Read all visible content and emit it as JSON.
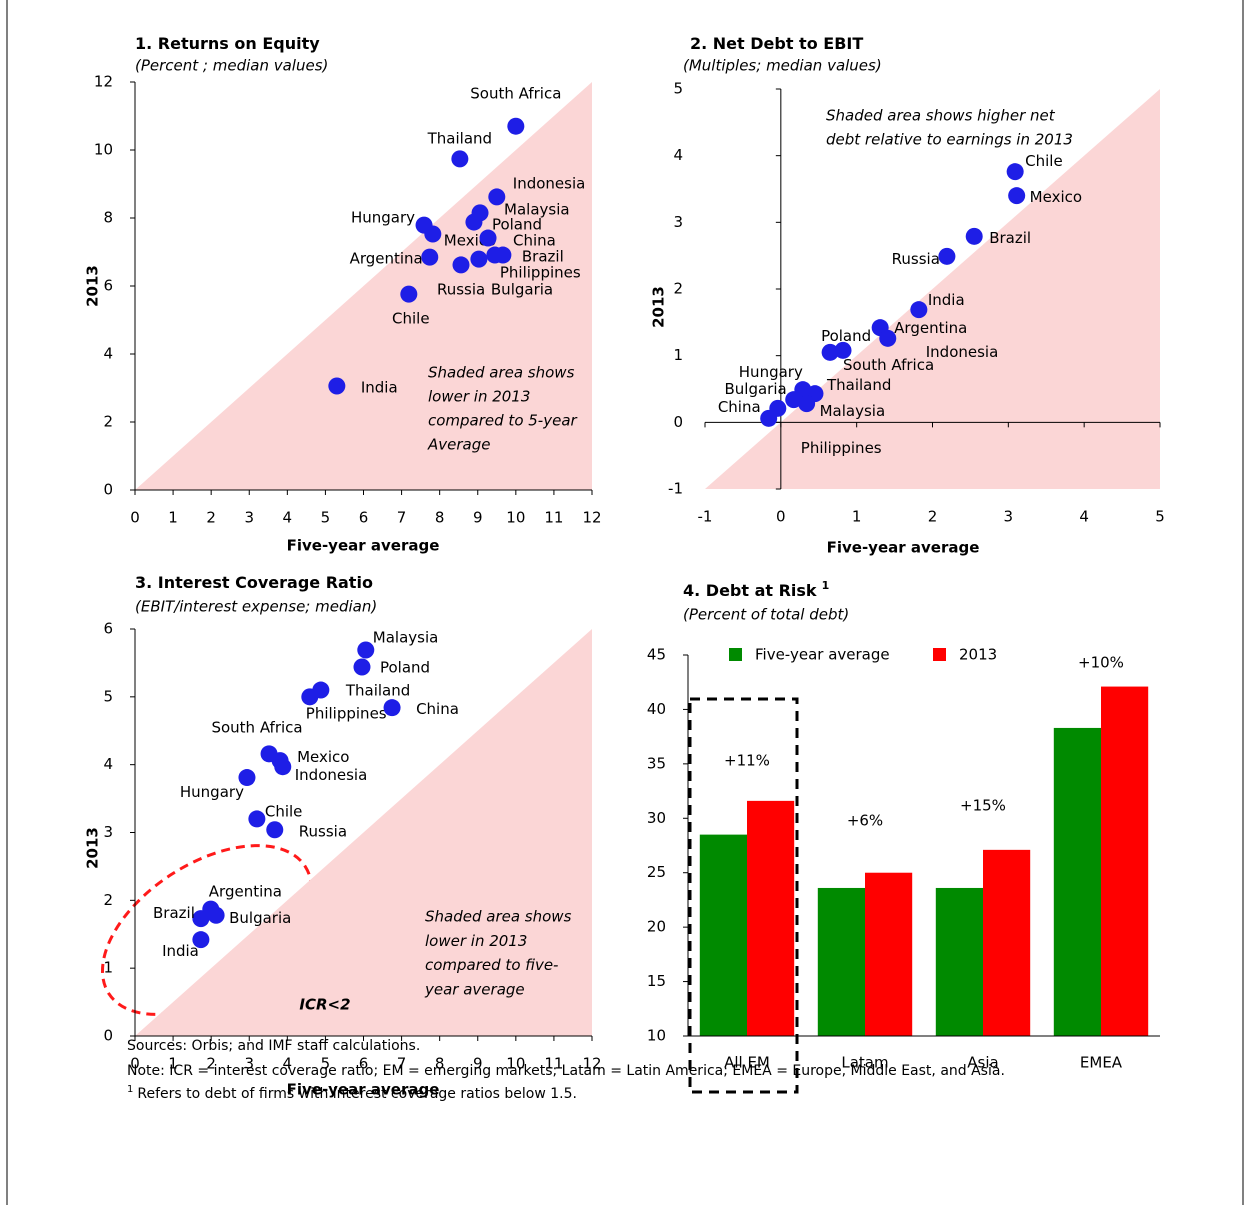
{
  "chart_data": [
    {
      "type": "scatter",
      "title": "1. Returns on Equity",
      "subtitle": "(Percent ; median values)",
      "x_label": "Five-year average",
      "y_label": "2013",
      "labels": [
        "South Africa",
        "Thailand",
        "Indonesia",
        "Malaysia",
        "Poland",
        "Hungary",
        "Mexico",
        "China",
        "Brazil",
        "Philippines",
        "Bulgaria",
        "Russia",
        "Argentina",
        "Chile",
        "India"
      ],
      "x": [
        10.0,
        8.53,
        9.5,
        9.06,
        8.9,
        7.59,
        7.82,
        9.27,
        9.66,
        9.45,
        9.03,
        8.56,
        7.74,
        7.19,
        5.3
      ],
      "values": [
        10.7,
        9.74,
        8.62,
        8.15,
        7.88,
        7.79,
        7.53,
        7.41,
        6.91,
        6.91,
        6.79,
        6.62,
        6.85,
        5.76,
        3.06
      ],
      "color": "#1e1ee6",
      "shade_color": "#fbd6d6",
      "annotation_color": "#ff1a1a",
      "annotation": [
        "Shaded area shows",
        "lower in 2013",
        "compared to 5-year",
        "Average"
      ],
      "xlim": [
        0,
        12
      ],
      "ylim": [
        0,
        12
      ],
      "xticks": [
        0,
        1,
        2,
        3,
        4,
        5,
        6,
        7,
        8,
        9,
        10,
        11,
        12
      ],
      "yticks": [
        0,
        2,
        4,
        6,
        8,
        10,
        12
      ]
    },
    {
      "type": "scatter",
      "title": "2. Net Debt to EBIT",
      "subtitle": "(Multiples; median values)",
      "x_label": "Five-year average",
      "y_label": "2013",
      "labels": [
        "Chile",
        "Mexico",
        "Brazil",
        "Russia",
        "India",
        "Argentina",
        "Indonesia",
        "Poland",
        "South Africa",
        "Hungary",
        "Thailand",
        "Bulgaria",
        "Malaysia",
        "China",
        "Philippines"
      ],
      "x": [
        3.09,
        3.11,
        2.55,
        2.19,
        1.82,
        1.31,
        1.41,
        0.65,
        0.82,
        0.29,
        0.45,
        0.17,
        0.34,
        -0.16,
        -0.04
      ],
      "values": [
        3.76,
        3.4,
        2.79,
        2.49,
        1.69,
        1.42,
        1.26,
        1.05,
        1.08,
        0.49,
        0.43,
        0.34,
        0.28,
        0.06,
        0.21
      ],
      "color": "#1e1ee6",
      "shade_color": "#fbd6d6",
      "annotation_color": "#ff1a1a",
      "annotation": [
        "Shaded area shows higher net",
        "debt relative to earnings in 2013"
      ],
      "xlim": [
        -1,
        5
      ],
      "ylim": [
        -1,
        5
      ],
      "xticks": [
        -1,
        0,
        1,
        2,
        3,
        4,
        5
      ],
      "yticks": [
        -1,
        0,
        1,
        2,
        3,
        4,
        5
      ]
    },
    {
      "type": "scatter",
      "title": "3. Interest Coverage Ratio",
      "subtitle": "(EBIT/interest expense; median)",
      "x_label": "Five-year average",
      "y_label": "2013",
      "labels": [
        "Malaysia",
        "Poland",
        "Thailand",
        "Philippines",
        "China",
        "South Africa",
        "Mexico",
        "Indonesia",
        "Hungary",
        "Chile",
        "Russia",
        "Argentina",
        "Bulgaria",
        "Brazil",
        "India"
      ],
      "x": [
        6.06,
        5.96,
        4.88,
        4.59,
        6.75,
        3.52,
        3.81,
        3.88,
        2.94,
        3.2,
        3.67,
        1.99,
        2.13,
        1.73,
        1.73
      ],
      "values": [
        5.69,
        5.44,
        5.1,
        5.0,
        4.84,
        4.16,
        4.06,
        3.97,
        3.81,
        3.2,
        3.04,
        1.87,
        1.78,
        1.73,
        1.42
      ],
      "color": "#1e1ee6",
      "shade_color": "#fbd6d6",
      "annotation_color": "#ff1a1a",
      "annotation": [
        "Shaded area shows",
        "lower in 2013",
        "compared to five-",
        "year average"
      ],
      "highlight": "ICR<2",
      "xlim": [
        0,
        12
      ],
      "ylim": [
        0,
        6
      ],
      "xticks": [
        0,
        1,
        2,
        3,
        4,
        5,
        6,
        7,
        8,
        9,
        10,
        11,
        12
      ],
      "yticks": [
        0,
        1,
        2,
        3,
        4,
        5,
        6
      ]
    },
    {
      "type": "bar",
      "title": "4. Debt at Risk",
      "title_note": "1",
      "subtitle": "(Percent of total debt)",
      "categories": [
        "All EM",
        "Latam",
        "Asia",
        "EMEA"
      ],
      "series": [
        {
          "name": "Five-year average",
          "color": "#008a00",
          "values": [
            28.5,
            23.6,
            23.6,
            38.3
          ]
        },
        {
          "name": "2013",
          "color": "#ff0000",
          "values": [
            31.6,
            25.0,
            27.1,
            42.1
          ]
        }
      ],
      "annotations": [
        "+11%",
        "+6%",
        "+15%",
        "+10%"
      ],
      "ylim": [
        10,
        45
      ],
      "yticks": [
        10,
        15,
        20,
        25,
        30,
        35,
        40,
        45
      ]
    }
  ],
  "footnotes": {
    "sources": "Sources: Orbis; and IMF staff calculations.",
    "note": "Note: ICR = interest coverage ratio; EM = emerging markets; Latam = Latin America; EMEA = Europe, Middle East, and Asia.",
    "marker": "1",
    "text": "Refers to debt of firms with interest coverage ratios below 1.5."
  }
}
